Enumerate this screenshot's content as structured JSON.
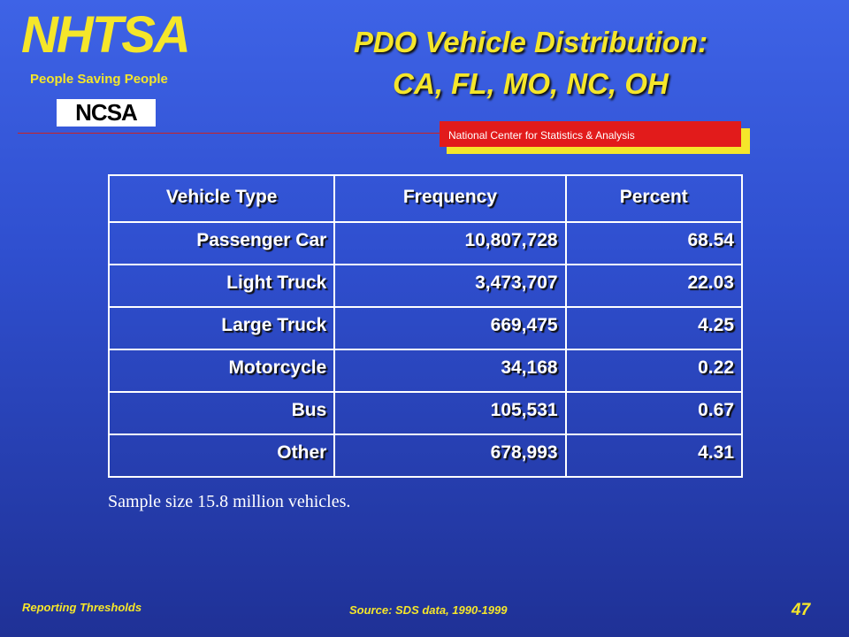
{
  "header": {
    "logo": "NHTSA",
    "tagline": "People Saving People",
    "sublogo": "NCSA",
    "title_lines": [
      "PDO Vehicle Distribution:",
      "CA, FL, MO, NC, OH"
    ],
    "banner": "National Center for Statistics & Analysis"
  },
  "table": {
    "columns": [
      "Vehicle Type",
      "Frequency",
      "Percent"
    ],
    "rows": [
      [
        "Passenger Car",
        "10,807,728",
        "68.54"
      ],
      [
        "Light Truck",
        "3,473,707",
        "22.03"
      ],
      [
        "Large Truck",
        "669,475",
        "4.25"
      ],
      [
        "Motorcycle",
        "34,168",
        "0.22"
      ],
      [
        "Bus",
        "105,531",
        "0.67"
      ],
      [
        "Other",
        "678,993",
        "4.31"
      ]
    ]
  },
  "note": "Sample size 15.8 million vehicles.",
  "footer": {
    "left": "Reporting Thresholds",
    "source": "Source: SDS data, 1990-1999",
    "page": "47"
  }
}
